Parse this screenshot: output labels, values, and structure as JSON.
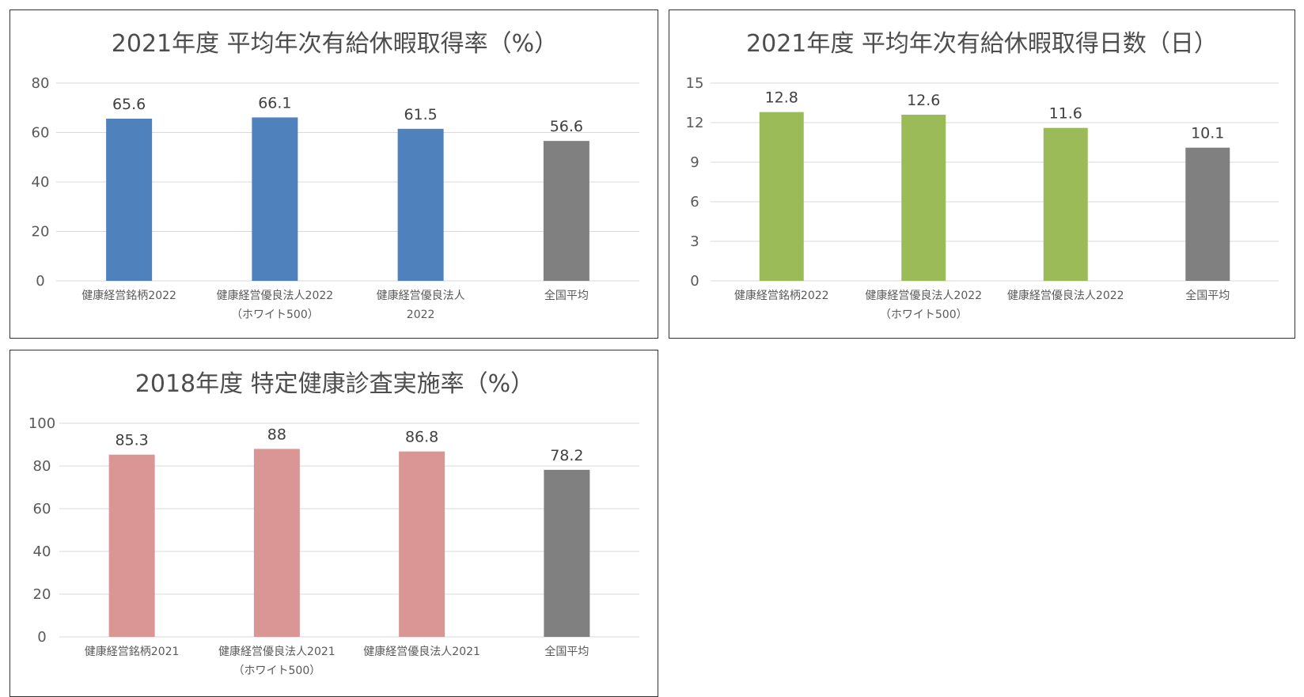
{
  "chart_data": [
    {
      "type": "bar",
      "title": "2021年度  平均年次有給休暇取得率（%）",
      "categories": [
        [
          "健康経営銘柄2022"
        ],
        [
          "健康経営優良法人2022",
          "（ホワイト500）"
        ],
        [
          "健康経営優良法人",
          "2022"
        ],
        [
          "全国平均"
        ]
      ],
      "values": [
        65.6,
        66.1,
        61.5,
        56.6
      ],
      "value_labels": [
        "65.6",
        "66.1",
        "61.5",
        "56.6"
      ],
      "ylim": [
        0,
        80
      ],
      "yticks": [
        0,
        20,
        40,
        60,
        80
      ],
      "bar_colors": [
        "#4f81bd",
        "#4f81bd",
        "#4f81bd",
        "#808080"
      ],
      "grid": true
    },
    {
      "type": "bar",
      "title": "2021年度  平均年次有給休暇取得日数（日）",
      "categories": [
        [
          "健康経営銘柄2022"
        ],
        [
          "健康経営優良法人2022",
          "（ホワイト500）"
        ],
        [
          "健康経営優良法人2022"
        ],
        [
          "全国平均"
        ]
      ],
      "values": [
        12.8,
        12.6,
        11.6,
        10.1
      ],
      "value_labels": [
        "12.8",
        "12.6",
        "11.6",
        "10.1"
      ],
      "ylim": [
        0,
        15
      ],
      "yticks": [
        0,
        3,
        6,
        9,
        12,
        15
      ],
      "bar_colors": [
        "#9bbb59",
        "#9bbb59",
        "#9bbb59",
        "#808080"
      ],
      "grid": true
    },
    {
      "type": "bar",
      "title": "2018年度  特定健康診査実施率（%）",
      "categories": [
        [
          "健康経営銘柄2021"
        ],
        [
          "健康経営優良法人2021",
          "（ホワイト500）"
        ],
        [
          "健康経営優良法人2021"
        ],
        [
          "全国平均"
        ]
      ],
      "values": [
        85.3,
        88,
        86.8,
        78.2
      ],
      "value_labels": [
        "85.3",
        "88",
        "86.8",
        "78.2"
      ],
      "ylim": [
        0,
        100
      ],
      "yticks": [
        0,
        20,
        40,
        60,
        80,
        100
      ],
      "bar_colors": [
        "#d99694",
        "#d99694",
        "#d99694",
        "#808080"
      ],
      "grid": true
    }
  ]
}
